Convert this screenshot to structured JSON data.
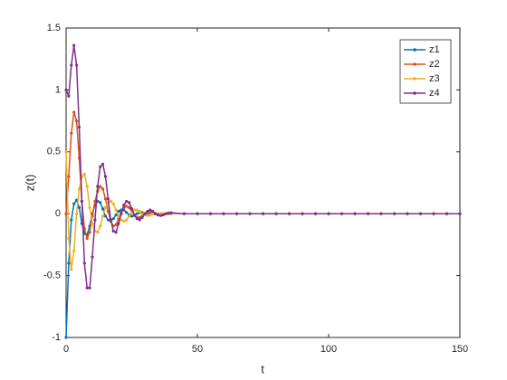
{
  "chart_data": {
    "type": "line",
    "xlabel": "t",
    "ylabel": "z(t)",
    "x": [
      0,
      1,
      2,
      3,
      4,
      5,
      6,
      7,
      8,
      9,
      10,
      11,
      12,
      13,
      14,
      15,
      16,
      17,
      18,
      19,
      20,
      21,
      22,
      23,
      24,
      25,
      26,
      27,
      28,
      29,
      30,
      31,
      32,
      33,
      34,
      35,
      36,
      37,
      38,
      39,
      40,
      45,
      50,
      55,
      60,
      65,
      70,
      75,
      80,
      85,
      90,
      95,
      100,
      105,
      110,
      115,
      120,
      125,
      130,
      135,
      140,
      145,
      150
    ],
    "series": [
      {
        "name": "z1",
        "color": "#0072BD",
        "values": [
          -1,
          -0.4,
          -0.05,
          0.08,
          0.11,
          0.05,
          -0.08,
          -0.16,
          -0.17,
          -0.1,
          0,
          0.07,
          0.1,
          0.09,
          0.04,
          -0.02,
          -0.05,
          -0.06,
          -0.04,
          -0.01,
          0.02,
          0.03,
          0.03,
          0.01,
          -0.01,
          -0.02,
          -0.015,
          0,
          0.01,
          0.01,
          0,
          0,
          0,
          0,
          0,
          0,
          0,
          0,
          0,
          0,
          0,
          0,
          0,
          0,
          0,
          0,
          0,
          0,
          0,
          0,
          0,
          0,
          0,
          0,
          0,
          0,
          0,
          0,
          0,
          0,
          0,
          0,
          0
        ]
      },
      {
        "name": "z2",
        "color": "#D95319",
        "values": [
          0,
          0.3,
          0.65,
          0.82,
          0.75,
          0.45,
          0.1,
          -0.12,
          -0.2,
          -0.15,
          -0.02,
          0.1,
          0.18,
          0.22,
          0.2,
          0.12,
          0.02,
          -0.06,
          -0.1,
          -0.09,
          -0.04,
          0.01,
          0.05,
          0.06,
          0.05,
          0.02,
          -0.01,
          -0.03,
          -0.03,
          -0.02,
          0,
          0.01,
          0.015,
          0.01,
          0,
          -0.005,
          0,
          0,
          0,
          0,
          0,
          0,
          0,
          0,
          0,
          0,
          0,
          0,
          0,
          0,
          0,
          0,
          0,
          0,
          0,
          0,
          0,
          0,
          0,
          0,
          0,
          0,
          0
        ]
      },
      {
        "name": "z3",
        "color": "#EDB120",
        "values": [
          0.5,
          -0.2,
          -0.45,
          -0.3,
          0,
          0.2,
          0.3,
          0.32,
          0.22,
          0.05,
          -0.08,
          -0.14,
          -0.15,
          -0.1,
          -0.02,
          0.05,
          0.09,
          0.1,
          0.08,
          0.03,
          -0.02,
          -0.05,
          -0.06,
          -0.05,
          -0.02,
          0.01,
          0.03,
          0.03,
          0.02,
          0,
          -0.01,
          -0.015,
          -0.01,
          0,
          0.005,
          0,
          0,
          0,
          0,
          0,
          0,
          0,
          0,
          0,
          0,
          0,
          0,
          0,
          0,
          0,
          0,
          0,
          0,
          0,
          0,
          0,
          0,
          0,
          0,
          0,
          0,
          0,
          0
        ]
      },
      {
        "name": "z4",
        "color": "#7E2F8E",
        "values": [
          1,
          0.95,
          1.2,
          1.36,
          1.2,
          0.7,
          0.1,
          -0.4,
          -0.6,
          -0.6,
          -0.35,
          -0.05,
          0.22,
          0.38,
          0.4,
          0.3,
          0.12,
          -0.05,
          -0.14,
          -0.15,
          -0.08,
          0,
          0.07,
          0.1,
          0.09,
          0.04,
          -0.01,
          -0.04,
          -0.05,
          -0.03,
          0,
          0.02,
          0.03,
          0.02,
          0,
          -0.01,
          -0.015,
          -0.01,
          0,
          0.005,
          0.008,
          0,
          0,
          0,
          0,
          0,
          0,
          0,
          0,
          0,
          0,
          0,
          0,
          0,
          0,
          0,
          0,
          0,
          0,
          0,
          0,
          0,
          0
        ]
      }
    ],
    "xlim": [
      0,
      150
    ],
    "xticks": [
      0,
      50,
      100,
      150
    ],
    "ylim": [
      -1,
      1.5
    ],
    "yticks": [
      -1,
      -0.5,
      0,
      0.5,
      1,
      1.5
    ],
    "grid": false,
    "legend": "northeast"
  }
}
